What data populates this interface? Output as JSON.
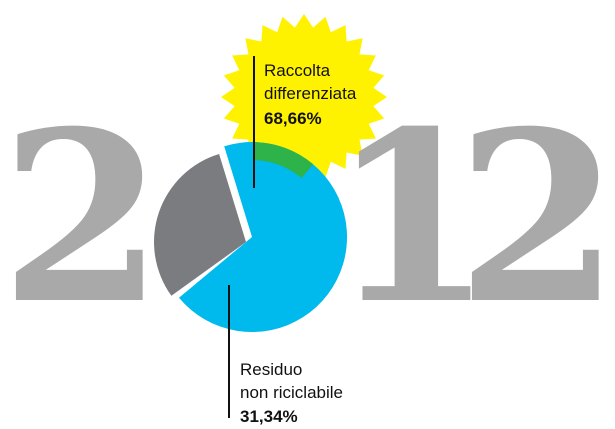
{
  "year": {
    "digits": [
      "2",
      "0",
      "1",
      "2"
    ]
  },
  "chart_data": {
    "type": "pie",
    "title": "",
    "slices": [
      {
        "label_lines": [
          "Raccolta",
          "differenziata"
        ],
        "value_label": "68,66%",
        "value": 68.66,
        "color": "#00b9ed"
      },
      {
        "label_lines": [
          "Residuo",
          "non riciclabile"
        ],
        "value_label": "31,34%",
        "value": 31.34,
        "color": "#7b7c80"
      }
    ],
    "accent_wedge_color": "#2db34a",
    "starburst_color": "#fff200",
    "digit_color": "#a9a9aa"
  }
}
